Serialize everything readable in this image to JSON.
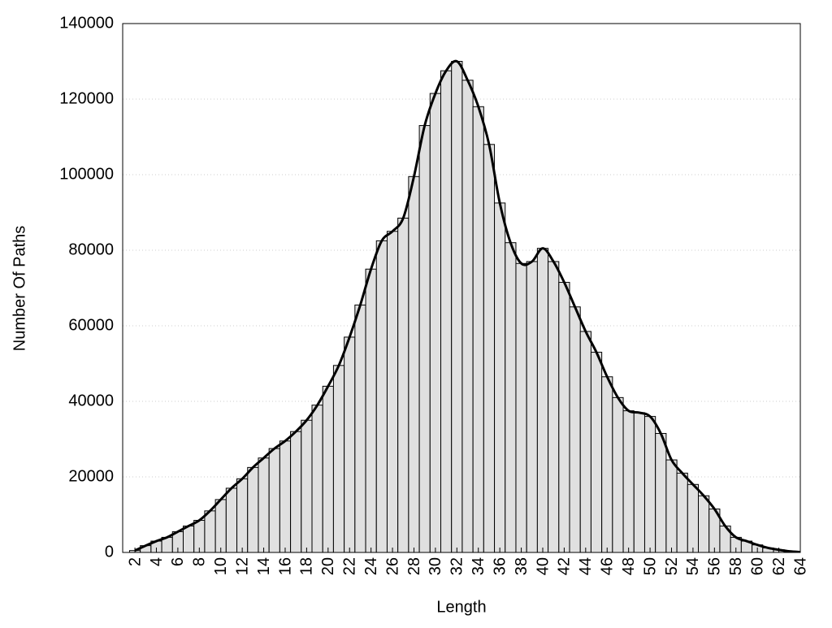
{
  "chart_data": {
    "type": "bar",
    "xlabel": "Length",
    "ylabel": "Number Of Paths",
    "x": [
      2,
      3,
      4,
      5,
      6,
      7,
      8,
      9,
      10,
      11,
      12,
      13,
      14,
      15,
      16,
      17,
      18,
      19,
      20,
      21,
      22,
      23,
      24,
      25,
      26,
      27,
      28,
      29,
      30,
      31,
      32,
      33,
      34,
      35,
      36,
      37,
      38,
      39,
      40,
      41,
      42,
      43,
      44,
      45,
      46,
      47,
      48,
      49,
      50,
      51,
      52,
      53,
      54,
      55,
      56,
      57,
      58,
      59,
      60,
      61,
      62,
      63,
      64
    ],
    "values": [
      500,
      1800,
      3000,
      4000,
      5500,
      7000,
      8500,
      11000,
      14000,
      17000,
      19500,
      22500,
      25000,
      27500,
      29500,
      32000,
      35000,
      39000,
      44000,
      49500,
      57000,
      65500,
      75000,
      82500,
      85000,
      88500,
      99500,
      113000,
      121500,
      127500,
      130000,
      125000,
      118000,
      108000,
      92500,
      82000,
      76500,
      77000,
      80500,
      77000,
      71500,
      65000,
      58500,
      53000,
      46500,
      41000,
      37500,
      37000,
      36000,
      31500,
      24500,
      21000,
      18000,
      15000,
      11500,
      7000,
      4000,
      3000,
      2000,
      1200,
      700,
      300,
      100
    ],
    "color": "#e0e0e0",
    "smooth_line": true,
    "line_color": "#000000",
    "xlim": [
      0.86,
      64
    ],
    "xticks": [
      2,
      4,
      6,
      8,
      10,
      12,
      14,
      16,
      18,
      20,
      22,
      24,
      26,
      28,
      30,
      32,
      34,
      36,
      38,
      40,
      42,
      44,
      46,
      48,
      50,
      52,
      54,
      56,
      58,
      60,
      62,
      64
    ],
    "ylim": [
      0,
      140000
    ],
    "yticks": [
      0,
      20000,
      40000,
      60000,
      80000,
      100000,
      120000,
      140000
    ],
    "grid": true
  }
}
